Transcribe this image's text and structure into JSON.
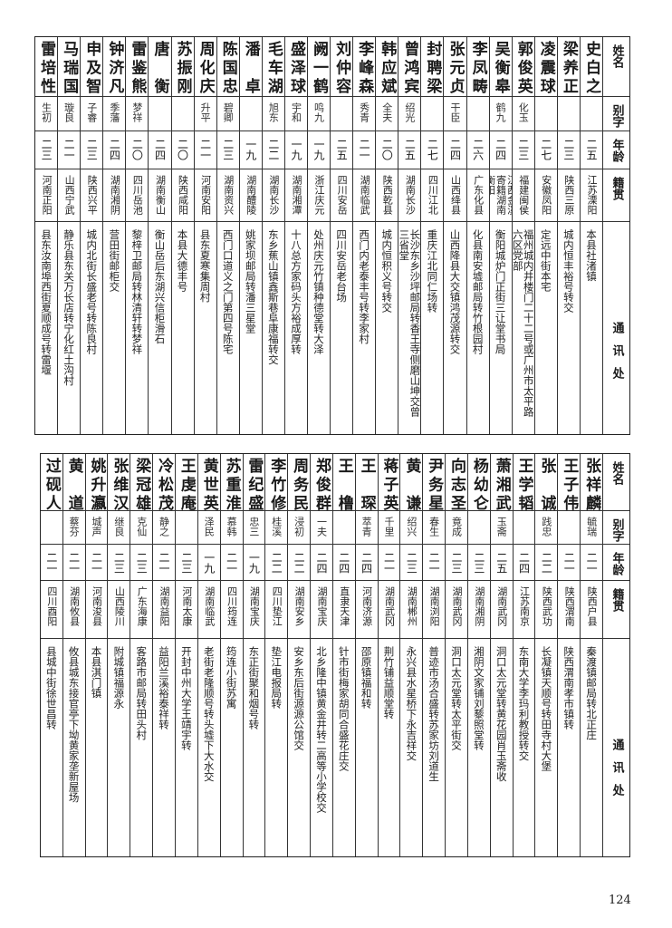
{
  "header": {
    "name_label": "姓名",
    "alias_label": "别字",
    "age_label": "年龄",
    "native_label": "籍贯",
    "address_label": "通讯处"
  },
  "tables": [
    {
      "people": [
        {
          "name": "史白之",
          "alias": "",
          "age": "二五",
          "native": "江苏溧阳",
          "address": "本县社渚镇"
        },
        {
          "name": "梁养正",
          "alias": "",
          "age": "二三",
          "native": "陕西三原",
          "address": "城内恒丰裕号转交"
        },
        {
          "name": "凌震球",
          "alias": "",
          "age": "二七",
          "native": "安徽凤阳",
          "address": "定远中街本宅"
        },
        {
          "name": "郭俊英",
          "alias": "化玉",
          "age": "二三",
          "native": "福建闽侯",
          "address": "福州城内井楼门二十二号或广州市太平路六区党部"
        },
        {
          "name": "吴衡皋",
          "alias": "鹤九",
          "age": "二四",
          "native": "江西金溪寄籍湖南衡阳",
          "address": "衡阳城炉门正街三让堂书局"
        },
        {
          "name": "李凤畴",
          "alias": "",
          "age": "二六",
          "native": "广东化县",
          "address": "化县南安墟邮局转竹根园村"
        },
        {
          "name": "张元贞",
          "alias": "干臣",
          "age": "二四",
          "native": "山西绛县",
          "address": "山西降县大交镇鸿茂源转交"
        },
        {
          "name": "封聘梁",
          "alias": "",
          "age": "二七",
          "native": "四川江北",
          "address": "重庆江北同仁场转"
        },
        {
          "name": "曾鸿宾",
          "alias": "绍光",
          "age": "二五",
          "native": "湖南长沙",
          "address": "长沙东乡沙坪邮局转香王寺侧磨山坤交曾三省堂"
        },
        {
          "name": "韩应斌",
          "alias": "全夫",
          "age": "二〇",
          "native": "陕西乾县",
          "address": "城内恒积义号转交"
        },
        {
          "name": "李峰森",
          "alias": "秀青",
          "age": "二一",
          "native": "湖南临武",
          "address": "西门内老泰丰号转李家村"
        },
        {
          "name": "刘仲容",
          "alias": "",
          "age": "二五",
          "native": "四川安岳",
          "address": "四川安岳老台场"
        },
        {
          "name": "阙一鹤",
          "alias": "鸣九",
          "age": "一九",
          "native": "浙江庆元",
          "address": "处州庆元竹镇种德堂转大泽"
        },
        {
          "name": "盛泽球",
          "alias": "宇和",
          "age": "一九",
          "native": "湖南湘潭",
          "address": "十八总方家码头方裕成厚转"
        },
        {
          "name": "毛车湖",
          "alias": "旭东",
          "age": "二二",
          "native": "湖南长沙",
          "address": "东乡蕉山镇鑫斯巷阜康福转交"
        },
        {
          "name": "潘卓",
          "alias": "",
          "age": "一九",
          "native": "湖南醴陵",
          "address": "姚家坝邮局转潘三星堂"
        },
        {
          "name": "陈国忠",
          "alias": "碧卿",
          "age": "二三",
          "native": "湖南资兴",
          "address": "西门口道义之门第四号陈宅"
        },
        {
          "name": "周化庆",
          "alias": "升平",
          "age": "二一",
          "native": "河南安阳",
          "address": "县东夏寒集周村"
        },
        {
          "name": "苏振刚",
          "alias": "",
          "age": "二〇",
          "native": "陕西咸阳",
          "address": "本县大德丰号"
        },
        {
          "name": "唐衡",
          "alias": "",
          "age": "二四",
          "native": "湖南衡山",
          "address": "衡山岳后东湖兴信柜滑石"
        },
        {
          "name": "雷鉴熊",
          "alias": "梦祥",
          "age": "二〇",
          "native": "四川岳池",
          "address": "黎梓卫邮局转林清轩转梦祥"
        },
        {
          "name": "钟济凡",
          "alias": "季藩",
          "age": "二四",
          "native": "湖南湘阴",
          "address": "营田街邮柜交"
        },
        {
          "name": "申及智",
          "alias": "子睿",
          "age": "二三",
          "native": "陕西兴平",
          "address": "城内北街长盛老号转陈良村"
        },
        {
          "name": "马瑞国",
          "alias": "璇良",
          "age": "二一",
          "native": "山西宁武",
          "address": "静乐县东关万长店转宁化红土沟村"
        },
        {
          "name": "雷培性",
          "alias": "生初",
          "age": "二三",
          "native": "河南正阳",
          "address": "县东汝南埠西街夏顺成号转雷堰"
        }
      ]
    },
    {
      "people": [
        {
          "name": "张祥麟",
          "alias": "毓瑞",
          "age": "二一",
          "native": "陕西户县",
          "address": "秦渡镇邮局转北正庄"
        },
        {
          "name": "王子伟",
          "alias": "",
          "age": "二一",
          "native": "陕西渭南",
          "address": "陕西渭南孝市镇转"
        },
        {
          "name": "张诚",
          "alias": "践忠",
          "age": "二二",
          "native": "陕西武功",
          "address": "长凝镇天顺号转田寺村大堡"
        },
        {
          "name": "王学韬",
          "alias": "",
          "age": "二四",
          "native": "江苏南京",
          "address": "东南大学李玛利教授转交"
        },
        {
          "name": "萧湘武",
          "alias": "玉斋",
          "age": "二五",
          "native": "湖南武冈",
          "address": "洞口太元堂转黄花园肖玉斋收"
        },
        {
          "name": "杨幼仑",
          "alias": "",
          "age": "二三",
          "native": "湖南湘阴",
          "address": "湘阴文家铺刘藜照堂转"
        },
        {
          "name": "向志圣",
          "alias": "竟成",
          "age": "二三",
          "native": "湖南武冈",
          "address": "洞口太元堂转太平街交"
        },
        {
          "name": "尹务星",
          "alias": "春生",
          "age": "二一",
          "native": "湖南浏阳",
          "address": "普迹市汤合盛转苏家坊刘道生"
        },
        {
          "name": "黄谦",
          "alias": "绍兴",
          "age": "二三",
          "native": "湖南郴州",
          "address": "永兴县水星桥下永吉祥交"
        },
        {
          "name": "蒋子英",
          "alias": "千里",
          "age": "二一",
          "native": "湖南武冈",
          "address": "荆竹铺益顺堂转"
        },
        {
          "name": "王琛",
          "alias": "萃青",
          "age": "二四",
          "native": "河南济源",
          "address": "邵原镇福和转"
        },
        {
          "name": "王橹",
          "alias": "",
          "age": "二四",
          "native": "直隶天津",
          "address": "针市街梅家胡同合盛花庄交"
        },
        {
          "name": "郑俊群",
          "alias": "一夫",
          "age": "二四",
          "native": "湖南宝庆",
          "address": "北乡隆中镇黄金井转二高等小学校交"
        },
        {
          "name": "周务民",
          "alias": "浸初",
          "age": "二二",
          "native": "湖南安乡",
          "address": "安乡东后街源源公馆交"
        },
        {
          "name": "李竹修",
          "alias": "桂溪",
          "age": "二二",
          "native": "四川垫江",
          "address": "垫江电报局转"
        },
        {
          "name": "雷纪盛",
          "alias": "忠三",
          "age": "一九",
          "native": "湖南宝庆",
          "address": "东正街聚和烟号转"
        },
        {
          "name": "苏重淮",
          "alias": "慕韩",
          "age": "二一",
          "native": "四川筠连",
          "address": "筠连小街苏寓"
        },
        {
          "name": "黄世英",
          "alias": "泽民",
          "age": "一九",
          "native": "湖南临武",
          "address": "老街老隆顺号转头墟下大水交"
        },
        {
          "name": "王虔庵",
          "alias": "",
          "age": "二三",
          "native": "河南太康",
          "address": "开封中州大学王靖宇转"
        },
        {
          "name": "冷松茂",
          "alias": "静之",
          "age": "二一",
          "native": "湖南益阳",
          "address": "益阳兰溪裕泰祥转"
        },
        {
          "name": "梁冠雄",
          "alias": "克仙",
          "age": "二三",
          "native": "广东海康",
          "address": "客路市邮局转田头村"
        },
        {
          "name": "张维汉",
          "alias": "继良",
          "age": "二三",
          "native": "山西陵川",
          "address": "附城镇福源永"
        },
        {
          "name": "姚升瀛",
          "alias": "城声",
          "age": "二一",
          "native": "河南浚县",
          "address": "本县淇门镇"
        },
        {
          "name": "黄道",
          "alias": "蔡芬",
          "age": "二一",
          "native": "湖南攸县",
          "address": "攸县城东接官亭下坳黄家垄新屋场"
        },
        {
          "name": "过砚人",
          "alias": "",
          "age": "二一",
          "native": "四川酉阳",
          "address": "县城中街徐世昌转"
        }
      ]
    }
  ],
  "page_number": "124"
}
